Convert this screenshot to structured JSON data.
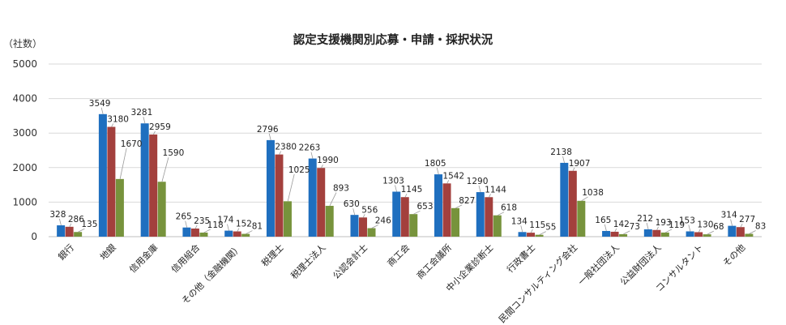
{
  "chart_data": {
    "type": "bar",
    "title": "認定支援機関別応募・申請・採択状況",
    "unit_label": "（社数）",
    "xlabel": "",
    "ylabel": "",
    "ylim": [
      0,
      5000
    ],
    "yticks": [
      0,
      1000,
      2000,
      3000,
      4000,
      5000
    ],
    "grid": true,
    "legend": "none",
    "categories": [
      "銀行",
      "地銀",
      "信用金庫",
      "信用組合",
      "その他（金融機関）",
      "税理士",
      "税理士法人",
      "公認会計士",
      "商工会",
      "商工会議所",
      "中小企業診断士",
      "行政書士",
      "民間コンサルティング会社",
      "一般社団法人",
      "公益財団法人",
      "コンサルタント",
      "その他"
    ],
    "series": [
      {
        "color": "#1f6fbf",
        "values": [
          328,
          3549,
          3281,
          265,
          174,
          2796,
          2263,
          630,
          1303,
          1805,
          1290,
          134,
          2138,
          165,
          212,
          153,
          314
        ]
      },
      {
        "color": "#a3403d",
        "values": [
          286,
          3180,
          2959,
          235,
          152,
          2380,
          1990,
          556,
          1145,
          1542,
          1144,
          115,
          1907,
          142,
          193,
          130,
          277
        ]
      },
      {
        "color": "#77933c",
        "values": [
          135,
          1670,
          1590,
          118,
          81,
          1025,
          893,
          246,
          653,
          827,
          618,
          55,
          1038,
          73,
          119,
          68,
          83
        ]
      }
    ]
  }
}
